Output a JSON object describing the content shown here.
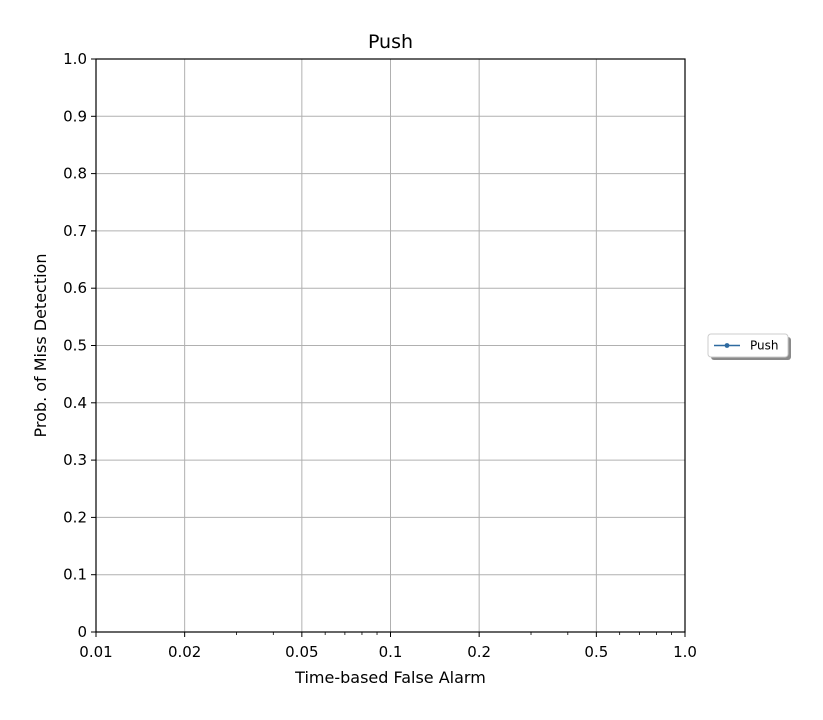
{
  "chart_data": {
    "type": "line",
    "title": "Push",
    "xlabel": "Time-based False Alarm",
    "ylabel": "Prob. of Miss Detection",
    "x_scale": "log",
    "xlim": [
      0.01,
      1.0
    ],
    "ylim": [
      0,
      1.0
    ],
    "x_ticks": [
      {
        "value": 0.01,
        "label": "0.01"
      },
      {
        "value": 0.02,
        "label": "0.02"
      },
      {
        "value": 0.05,
        "label": "0.05"
      },
      {
        "value": 0.1,
        "label": "0.1"
      },
      {
        "value": 0.2,
        "label": "0.2"
      },
      {
        "value": 0.5,
        "label": "0.5"
      },
      {
        "value": 1.0,
        "label": "1.0"
      }
    ],
    "y_ticks": [
      {
        "value": 0,
        "label": "0"
      },
      {
        "value": 0.1,
        "label": "0.1"
      },
      {
        "value": 0.2,
        "label": "0.2"
      },
      {
        "value": 0.3,
        "label": "0.3"
      },
      {
        "value": 0.4,
        "label": "0.4"
      },
      {
        "value": 0.5,
        "label": "0.5"
      },
      {
        "value": 0.6,
        "label": "0.6"
      },
      {
        "value": 0.7,
        "label": "0.7"
      },
      {
        "value": 0.8,
        "label": "0.8"
      },
      {
        "value": 0.9,
        "label": "0.9"
      },
      {
        "value": 1.0,
        "label": "1.0"
      }
    ],
    "grid": true,
    "legend_position": "outside-right",
    "series": [
      {
        "name": "Push",
        "color": "#2e6aa0",
        "marker": "dot",
        "x": [],
        "y": []
      }
    ]
  }
}
